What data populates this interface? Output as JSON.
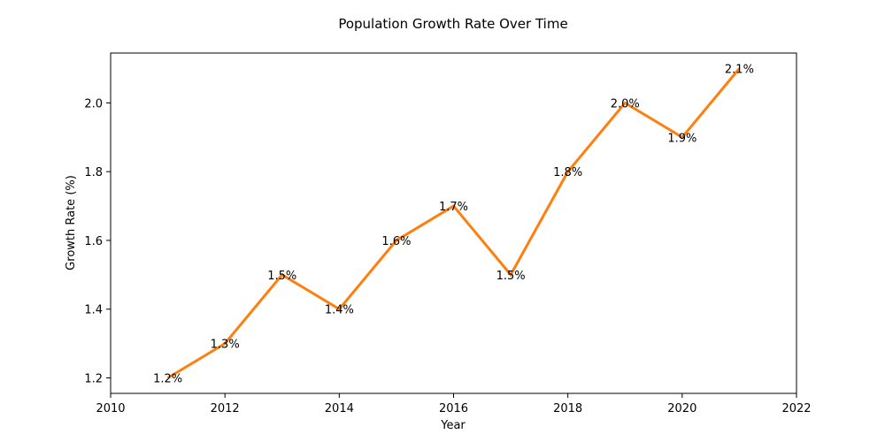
{
  "chart_data": {
    "type": "line",
    "title": "Population Growth Rate Over Time",
    "xlabel": "Year",
    "ylabel": "Growth Rate (%)",
    "xlim": [
      2010,
      2022
    ],
    "ylim": [
      1.155,
      2.145
    ],
    "xticks": [
      2010,
      2012,
      2014,
      2016,
      2018,
      2020,
      2022
    ],
    "yticks": [
      1.2,
      1.4,
      1.6,
      1.8,
      2.0
    ],
    "ytick_labels": [
      "1.2",
      "1.4",
      "1.6",
      "1.8",
      "2.0"
    ],
    "grid": false,
    "series": [
      {
        "name": "Growth Rate",
        "color": "#ff7f0e",
        "x": [
          2011,
          2012,
          2013,
          2014,
          2015,
          2016,
          2017,
          2018,
          2019,
          2020,
          2021
        ],
        "y": [
          1.2,
          1.3,
          1.5,
          1.4,
          1.6,
          1.7,
          1.5,
          1.8,
          2.0,
          1.9,
          2.1
        ],
        "labels": [
          "1.2%",
          "1.3%",
          "1.5%",
          "1.4%",
          "1.6%",
          "1.7%",
          "1.5%",
          "1.8%",
          "2.0%",
          "1.9%",
          "2.1%"
        ]
      }
    ]
  }
}
